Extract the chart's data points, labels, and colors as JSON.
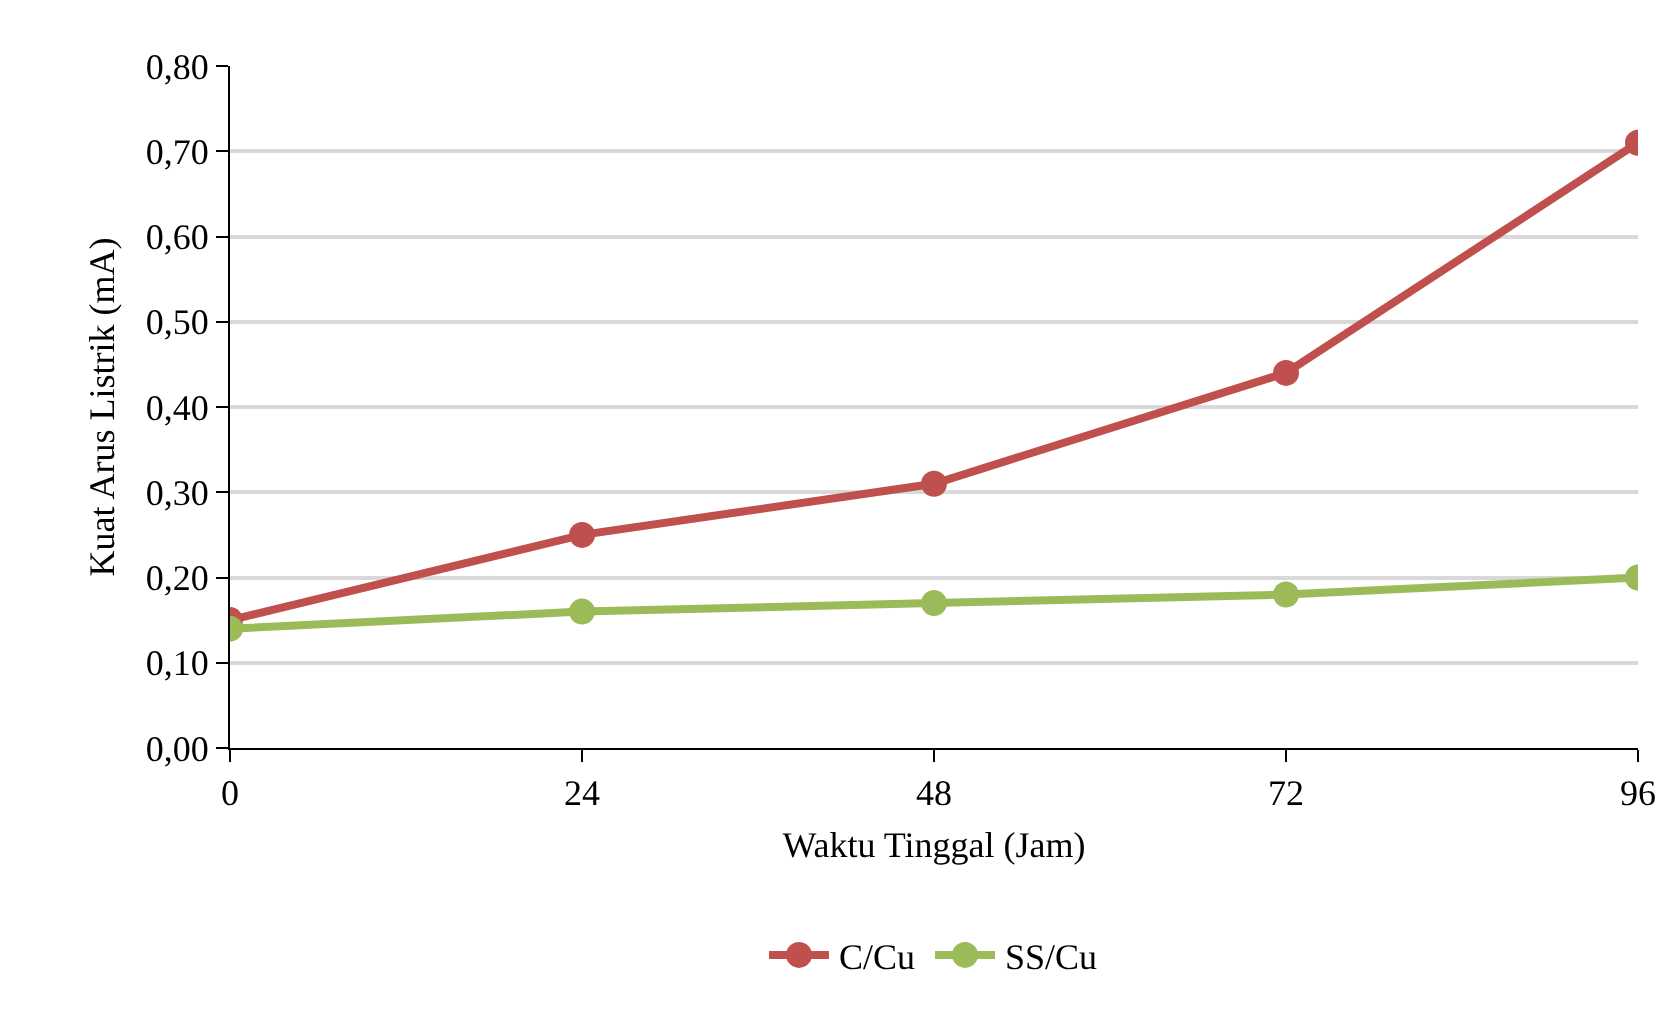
{
  "chart_data": {
    "type": "line",
    "xlabel": "Waktu Tinggal (Jam)",
    "ylabel": "Kuat Arus Listrik (mA)",
    "x": [
      0,
      24,
      48,
      72,
      96
    ],
    "series": [
      {
        "name": "C/Cu",
        "color": "#c0504d",
        "values": [
          0.15,
          0.25,
          0.31,
          0.44,
          0.71
        ]
      },
      {
        "name": "SS/Cu",
        "color": "#9bbb59",
        "values": [
          0.14,
          0.16,
          0.17,
          0.18,
          0.2
        ]
      }
    ],
    "xlim": [
      0,
      96
    ],
    "xticks": [
      0,
      24,
      48,
      72,
      96
    ],
    "ylim": [
      0,
      0.8
    ],
    "yticks": [
      {
        "value": 0,
        "label": "0,00"
      },
      {
        "value": 0.1,
        "label": "0,10"
      },
      {
        "value": 0.2,
        "label": "0,20"
      },
      {
        "value": 0.3,
        "label": "0,30"
      },
      {
        "value": 0.4,
        "label": "0,40"
      },
      {
        "value": 0.5,
        "label": "0,50"
      },
      {
        "value": 0.6,
        "label": "0,60"
      },
      {
        "value": 0.7,
        "label": "0,70"
      },
      {
        "value": 0.8,
        "label": "0,80"
      }
    ],
    "grid": "y",
    "legend": "bottom",
    "marker": "circle",
    "line_style": "solid"
  }
}
